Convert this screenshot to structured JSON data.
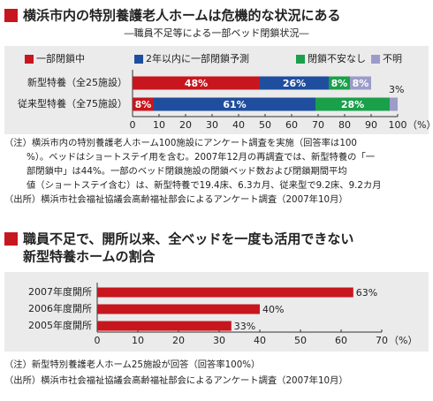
{
  "chart_data": [
    {
      "type": "stacked",
      "title": [
        "横浜市内の特別養護老人ホームは危機的な状況にある"
      ],
      "subtitle": "―職員不足等による一部ベッド閉鎖状況―",
      "categories": [
        "新型特養（全25施設）",
        "従来型特養（全75施設）"
      ],
      "series": [
        {
          "name": "一部閉鎖中",
          "color": "#c8161e",
          "values": [
            48,
            8
          ],
          "value_labels": [
            "48%",
            "8%"
          ]
        },
        {
          "name": "2年以内に一部閉鎖予測",
          "color": "#1f4e9e",
          "values": [
            26,
            61
          ],
          "value_labels": [
            "26%",
            "61%"
          ]
        },
        {
          "name": "閉鎖不安なし",
          "color": "#1aa04a",
          "values": [
            8,
            28
          ],
          "value_labels": [
            "8%",
            "28%"
          ]
        },
        {
          "name": "不明",
          "color": "#9c9cc9",
          "values": [
            8,
            3
          ],
          "value_labels": [
            "8%",
            "3%"
          ]
        }
      ],
      "xlim": [
        0,
        100
      ],
      "xticks": [
        0,
        10,
        20,
        30,
        40,
        50,
        60,
        70,
        80,
        90,
        100
      ],
      "x_unit": "（%）",
      "notes": [
        "（注）横浜市内の特別養護老人ホーム100施設にアンケート調査を実施（回答率は100",
        "%）。ベッドはショートステイ用を含む。2007年12月の再調査では、新型特養の「一",
        "部閉鎖中」は44%。一部のベッド閉鎖施設の閉鎖ベッド数および閉鎖期間平均",
        "値（ショートステイ含む）は、新型特養で19.4床、6.3カ月、従来型で9.2床、9.2カ月",
        "（出所）横浜市社会福祉協議会高齢福祉部会によるアンケート調査（2007年10月）"
      ]
    },
    {
      "type": "barh",
      "title": [
        "職員不足で、開所以来、全ベッドを一度も活用できない",
        "新型特養ホームの割合"
      ],
      "categories": [
        "2007年度開所",
        "2006年度開所",
        "2005年度開所"
      ],
      "values": [
        63,
        40,
        33
      ],
      "value_labels": [
        "63%",
        "40%",
        "33%"
      ],
      "color": "#c8161e",
      "xlim": [
        0,
        70
      ],
      "xticks": [
        0,
        10,
        20,
        30,
        40,
        50,
        60,
        70
      ],
      "x_unit": "（%）",
      "notes": [
        "（注）新型特別養護老人ホーム25施設が回答（回答率100%）",
        "（出所）横浜市社会福祉協議会高齢福祉部会によるアンケート調査（2007年10月）"
      ]
    }
  ]
}
